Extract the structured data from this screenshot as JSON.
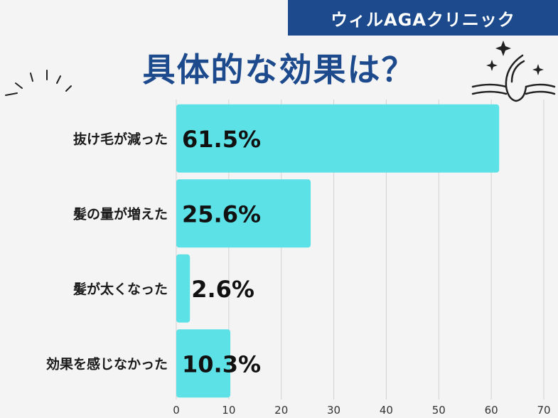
{
  "brand": "ウィルAGAクリニック",
  "chart_data": {
    "type": "bar",
    "orientation": "horizontal",
    "title": "具体的な効果は？",
    "categories": [
      "抜け毛が減った",
      "髪の量が増えた",
      "髪が太くなった",
      "効果を感じなかった"
    ],
    "values": [
      61.5,
      25.6,
      2.6,
      10.3
    ],
    "value_labels": [
      "61.5%",
      "25.6%",
      "2.6%",
      "10.3%"
    ],
    "xlim": [
      0,
      70
    ],
    "xticks": [
      0,
      10,
      20,
      30,
      40,
      50,
      60,
      70
    ],
    "grid": true,
    "bar_color": "#5ce1e6"
  }
}
